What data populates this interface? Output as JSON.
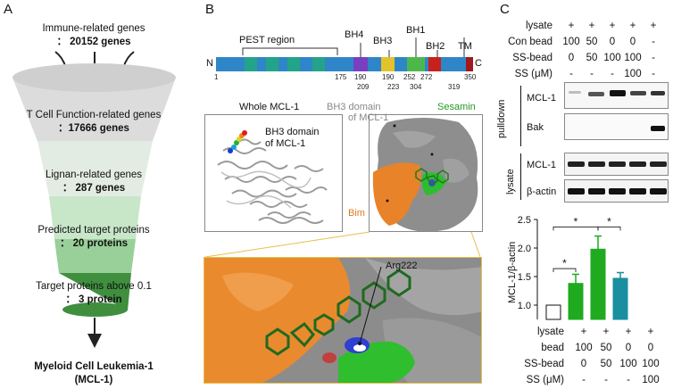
{
  "panels": {
    "a": "A",
    "b": "B",
    "c": "C"
  },
  "panel_a": {
    "levels": [
      {
        "line1": "Immune-related genes",
        "line2": "： 20152 genes"
      },
      {
        "line1": "T Cell Function-related genes",
        "line2": "：17666 genes"
      },
      {
        "line1": "Lignan-related genes",
        "line2": "： 287 genes"
      },
      {
        "line1": "Predicted target proteins",
        "line2": "： 20 proteins"
      },
      {
        "line1": "Target proteins above 0.1",
        "line2": "： 3 protein"
      }
    ],
    "result_line1": "Myeloid Cell Leukemia-1",
    "result_line2": "(MCL-1)"
  },
  "panel_b": {
    "domain_labels": {
      "pest": "PEST region",
      "bh4": "BH4",
      "bh3": "BH3",
      "bh1": "BH1",
      "bh2": "BH2",
      "tm": "TM",
      "n": "N",
      "c": "C"
    },
    "positions": {
      "p1": "1",
      "p175": "175",
      "p190": "190",
      "p209": "209",
      "p223": "223",
      "p252": "252",
      "p272": "272",
      "p304": "304",
      "p319": "319",
      "p350": "350"
    },
    "whole_title": "Whole MCL-1",
    "bh3_callout_1": "BH3 domain",
    "bh3_callout_2": "of MCL-1",
    "surface_title_1": "BH3 domain",
    "surface_title_2": "of MCL-1",
    "sesamin": "Sesamin",
    "bim": "Bim",
    "arg": "Arg222"
  },
  "panel_c": {
    "blot_rows": {
      "lysate": {
        "label": "lysate",
        "vals": [
          "+",
          "+",
          "+",
          "+",
          "+"
        ]
      },
      "con_bead": {
        "label": "Con bead",
        "vals": [
          "100",
          "50",
          "0",
          "0",
          "-"
        ]
      },
      "ss_bead": {
        "label": "SS-bead",
        "vals": [
          "0",
          "50",
          "100",
          "100",
          "-"
        ]
      },
      "ss": {
        "label": "SS (μM)",
        "vals": [
          "-",
          "-",
          "-",
          "100",
          "-"
        ]
      }
    },
    "blot_labels": {
      "pulldown": "pulldown",
      "lysate": "lysate",
      "mcl1_a": "MCL-1",
      "bak": "Bak",
      "mcl1_b": "MCL-1",
      "actin": "β-actin"
    },
    "bottom_rows": {
      "lysate": {
        "label": "lysate",
        "vals": [
          "+",
          "+",
          "+",
          "+"
        ]
      },
      "bead": {
        "label": "bead",
        "vals": [
          "100",
          "50",
          "0",
          "0"
        ]
      },
      "ss_bead": {
        "label": "SS-bead",
        "vals": [
          "0",
          "50",
          "100",
          "100"
        ]
      },
      "ss": {
        "label": "SS (μM)",
        "vals": [
          "-",
          "-",
          "-",
          "100"
        ]
      }
    },
    "sig": [
      "*",
      "*",
      "*"
    ]
  },
  "chart_data": {
    "type": "bar",
    "ylabel": "MCL-1/β-actin",
    "ylim": [
      0.75,
      2.5
    ],
    "yticks": [
      1.0,
      1.5,
      2.0,
      2.5
    ],
    "categories": [
      "1",
      "2",
      "3",
      "4"
    ],
    "values": [
      1.0,
      1.38,
      1.98,
      1.47
    ],
    "errors": [
      0.0,
      0.16,
      0.23,
      0.1
    ],
    "colors": [
      "#ffffff",
      "#1faa1f",
      "#1faa1f",
      "#1a8fa0"
    ]
  }
}
